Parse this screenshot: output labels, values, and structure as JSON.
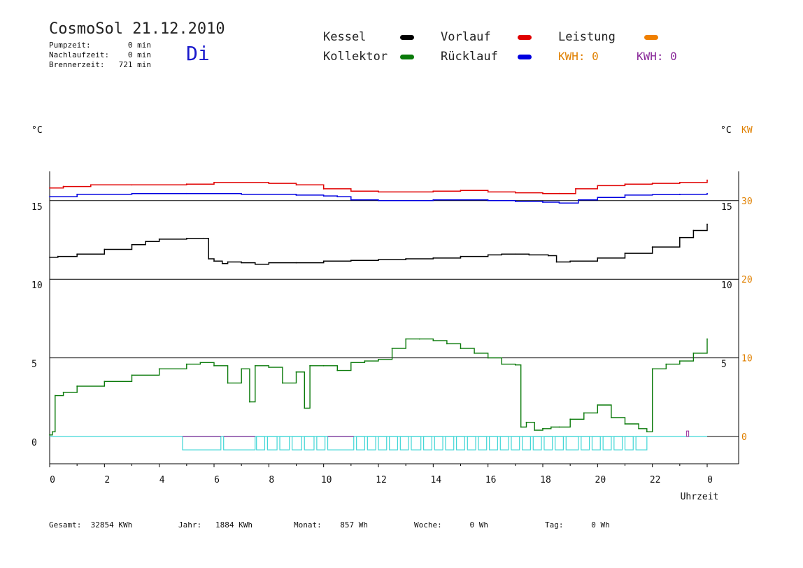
{
  "header": {
    "title": "CosmoSol 21.12.2010",
    "weekday": "Di",
    "stats": [
      {
        "label": "Pumpzeit:",
        "value": "0 min"
      },
      {
        "label": "Nachlaufzeit:",
        "value": "0 min"
      },
      {
        "label": "Brennerzeit:",
        "value": "721 min"
      }
    ]
  },
  "legend": {
    "kessel": "Kessel",
    "kollektor": "Kollektor",
    "vorlauf": "Vorlauf",
    "ruecklauf": "Rücklauf",
    "leistung": "Leistung",
    "kwh1_label": "KWH:",
    "kwh1_value": "0",
    "kwh2_label": "KWH:",
    "kwh2_value": "0"
  },
  "colors": {
    "kessel": "#000000",
    "kollektor": "#0a7a0a",
    "vorlauf": "#e00000",
    "ruecklauf": "#0000e0",
    "leistung": "#f08000",
    "kwh2": "#8a2a9a",
    "pump": "#3fd6d6",
    "pump_alt": "#9a2a9a"
  },
  "footer": [
    {
      "label": "Gesamt:",
      "value": "32854 KWh"
    },
    {
      "label": "Jahr:",
      "value": "1884 KWh"
    },
    {
      "label": "Monat:",
      "value": "857 Wh"
    },
    {
      "label": "Woche:",
      "value": "0 Wh"
    },
    {
      "label": "Tag:",
      "value": "0 Wh"
    }
  ],
  "chart_data": {
    "type": "line",
    "title": "CosmoSol 21.12.2010",
    "xlabel": "Uhrzeit",
    "ylabel_left": "°C",
    "ylabel_right": [
      "°C",
      "KW"
    ],
    "xlim": [
      0,
      24
    ],
    "x_ticks": [
      "0",
      "2",
      "4",
      "6",
      "8",
      "10",
      "12",
      "14",
      "16",
      "18",
      "20",
      "22",
      "0"
    ],
    "ylim": [
      -1.6,
      16.2
    ],
    "y_ticks_left": [
      "0",
      "5",
      "10",
      "15"
    ],
    "y_ticks_right_c": [
      "5",
      "10",
      "15"
    ],
    "y_ticks_right_kw": [
      "0",
      "10",
      "20",
      "30"
    ],
    "grid": "horizontal",
    "series": [
      {
        "name": "Vorlauf",
        "color": "#e00000",
        "x": [
          0,
          0.5,
          1.5,
          3,
          5,
          6,
          8,
          9,
          10,
          11,
          12,
          14,
          15,
          16,
          17,
          18,
          18.6,
          19.2,
          20,
          21,
          22,
          23,
          24
        ],
        "y": [
          15.8,
          15.9,
          16.0,
          16.0,
          16.05,
          16.15,
          16.1,
          16.0,
          15.75,
          15.6,
          15.55,
          15.6,
          15.65,
          15.55,
          15.5,
          15.45,
          15.45,
          15.75,
          15.95,
          16.05,
          16.1,
          16.15,
          16.3
        ]
      },
      {
        "name": "Rücklauf",
        "color": "#0000e0",
        "x": [
          0,
          1,
          3,
          5,
          7,
          9,
          10,
          10.5,
          11,
          12,
          14,
          16,
          17,
          18,
          18.6,
          19.3,
          20,
          21,
          22,
          23,
          24
        ],
        "y": [
          15.25,
          15.4,
          15.45,
          15.45,
          15.4,
          15.35,
          15.3,
          15.25,
          15.05,
          15.0,
          15.05,
          15.0,
          14.95,
          14.9,
          14.85,
          15.05,
          15.2,
          15.35,
          15.38,
          15.4,
          15.45
        ],
        "dash_on_baseline": false
      },
      {
        "name": "Kessel",
        "color": "#000000",
        "x": [
          0,
          0.3,
          1,
          2,
          3,
          3.5,
          4,
          5,
          5.6,
          5.8,
          6,
          6.3,
          6.5,
          7,
          7.5,
          8,
          9,
          10,
          11,
          12,
          13,
          14,
          15,
          16,
          16.5,
          17,
          17.5,
          18.2,
          18.5,
          19,
          20,
          21,
          22,
          23,
          23.5,
          24
        ],
        "y": [
          11.4,
          11.45,
          11.6,
          11.9,
          12.2,
          12.4,
          12.55,
          12.6,
          12.6,
          11.3,
          11.15,
          11.0,
          11.1,
          11.05,
          10.95,
          11.05,
          11.05,
          11.15,
          11.2,
          11.25,
          11.3,
          11.35,
          11.45,
          11.55,
          11.6,
          11.6,
          11.55,
          11.5,
          11.1,
          11.15,
          11.35,
          11.65,
          12.05,
          12.65,
          13.1,
          13.5
        ]
      },
      {
        "name": "Kollektor",
        "color": "#0a7a0a",
        "x": [
          0,
          0.1,
          0.2,
          0.5,
          1,
          2,
          3,
          4,
          5,
          5.5,
          6,
          6.5,
          7,
          7.3,
          7.5,
          8,
          8.5,
          9,
          9.3,
          9.5,
          10,
          10.5,
          11,
          11.5,
          12,
          12.5,
          13,
          13.5,
          14,
          14.5,
          15,
          15.5,
          16,
          16.5,
          17,
          17.2,
          17.4,
          17.7,
          18,
          18.3,
          18.6,
          19,
          19.5,
          20,
          20.5,
          21,
          21.5,
          21.8,
          22,
          22.5,
          23,
          23.5,
          24
        ],
        "y": [
          0.1,
          0.3,
          2.6,
          2.8,
          3.2,
          3.5,
          3.9,
          4.3,
          4.6,
          4.7,
          4.5,
          3.4,
          4.3,
          2.2,
          4.5,
          4.4,
          3.4,
          4.1,
          1.8,
          4.5,
          4.5,
          4.2,
          4.7,
          4.8,
          4.9,
          5.6,
          6.2,
          6.2,
          6.1,
          5.9,
          5.6,
          5.3,
          5.0,
          4.6,
          4.55,
          0.6,
          0.9,
          0.4,
          0.5,
          0.6,
          0.6,
          1.1,
          1.5,
          2.0,
          1.2,
          0.8,
          0.5,
          0.3,
          4.3,
          4.6,
          4.8,
          5.3,
          6.2
        ]
      }
    ],
    "pump_pulses": {
      "level_low": 0,
      "level_high": -0.85,
      "intervals": [
        [
          4.85,
          6.25,
          "alt"
        ],
        [
          6.35,
          7.5,
          "alt"
        ],
        [
          7.55,
          7.85,
          "on"
        ],
        [
          7.95,
          8.3,
          "on"
        ],
        [
          8.4,
          8.75,
          "on"
        ],
        [
          8.85,
          9.2,
          "on"
        ],
        [
          9.3,
          9.65,
          "on"
        ],
        [
          9.75,
          10.05,
          "on"
        ],
        [
          10.15,
          11.1,
          "alt"
        ],
        [
          11.2,
          11.5,
          "on"
        ],
        [
          11.6,
          11.9,
          "on"
        ],
        [
          12.0,
          12.3,
          "on"
        ],
        [
          12.4,
          12.7,
          "on"
        ],
        [
          12.8,
          13.1,
          "on"
        ],
        [
          13.2,
          13.55,
          "on"
        ],
        [
          13.65,
          13.95,
          "on"
        ],
        [
          14.05,
          14.35,
          "on"
        ],
        [
          14.45,
          14.75,
          "on"
        ],
        [
          14.85,
          15.15,
          "on"
        ],
        [
          15.25,
          15.55,
          "on"
        ],
        [
          15.65,
          15.95,
          "on"
        ],
        [
          16.05,
          16.35,
          "on"
        ],
        [
          16.45,
          16.75,
          "on"
        ],
        [
          16.85,
          17.15,
          "on"
        ],
        [
          17.25,
          17.55,
          "on"
        ],
        [
          17.65,
          17.95,
          "on"
        ],
        [
          18.05,
          18.35,
          "on"
        ],
        [
          18.45,
          18.75,
          "on"
        ],
        [
          18.85,
          19.3,
          "on"
        ],
        [
          19.4,
          19.7,
          "on"
        ],
        [
          19.8,
          20.1,
          "on"
        ],
        [
          20.2,
          20.5,
          "on"
        ],
        [
          20.6,
          20.9,
          "on"
        ],
        [
          21.0,
          21.3,
          "on"
        ],
        [
          21.4,
          21.8,
          "on"
        ]
      ]
    }
  }
}
